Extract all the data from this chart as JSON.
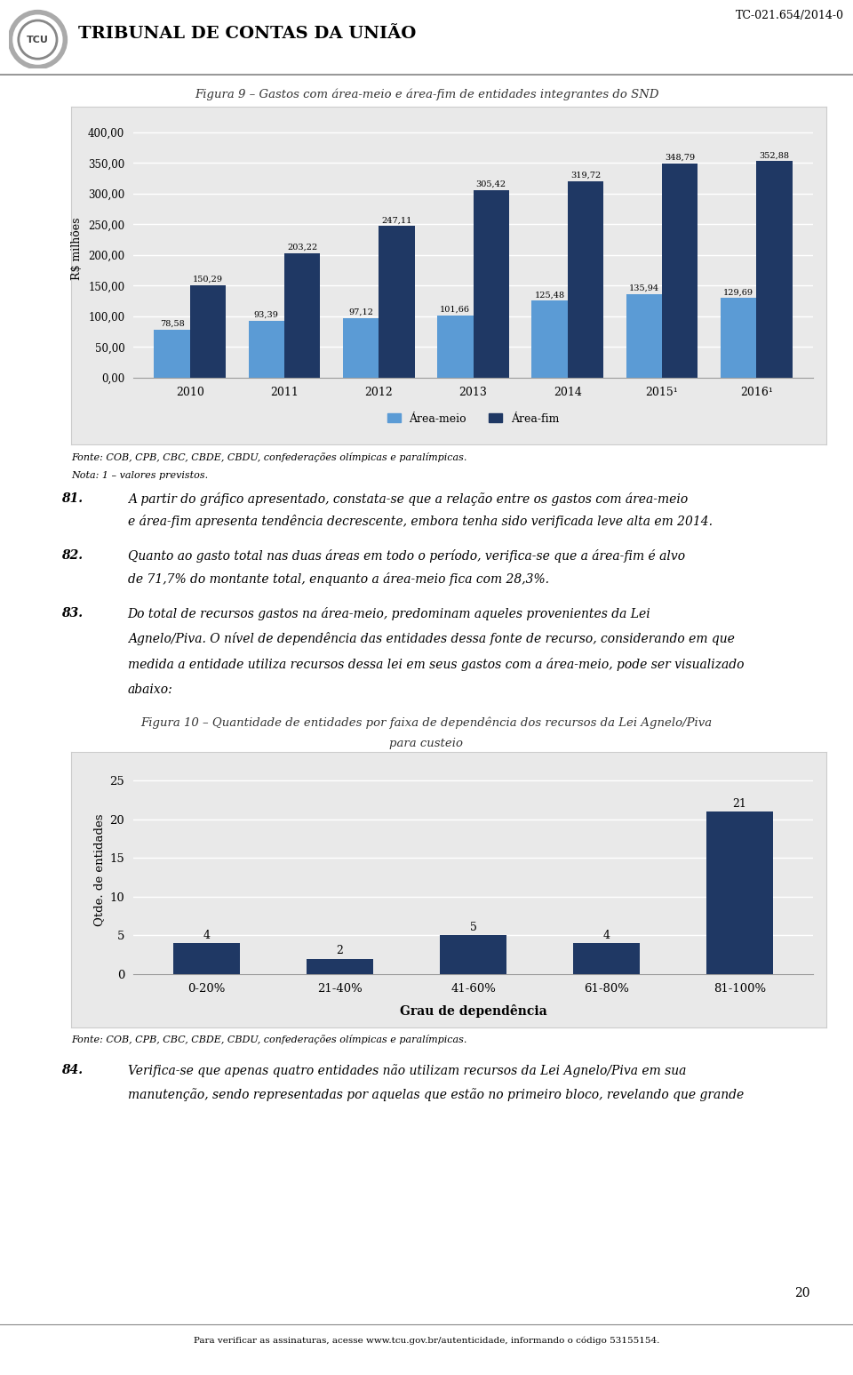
{
  "page_title": "TRIBUNAL DE CONTAS DA UNIÃO",
  "page_code": "TC-021.654/2014-0",
  "page_number": "20",
  "fig9_title": "Figura 9 – Gastos com área-meio e área-fim de entidades integrantes do SND",
  "fig9_years": [
    "2010",
    "2011",
    "2012",
    "2013",
    "2014",
    "2015¹",
    "2016¹"
  ],
  "fig9_area_meio": [
    78.58,
    93.39,
    97.12,
    101.66,
    125.48,
    135.94,
    129.69
  ],
  "fig9_area_fim": [
    150.29,
    203.22,
    247.11,
    305.42,
    319.72,
    348.79,
    352.88
  ],
  "fig9_ylabel": "R$ milhões",
  "fig9_yticks": [
    0,
    50,
    100,
    150,
    200,
    250,
    300,
    350,
    400
  ],
  "fig9_ytick_labels": [
    "0,00",
    "50,00",
    "100,00",
    "150,00",
    "200,00",
    "250,00",
    "300,00",
    "350,00",
    "400,00"
  ],
  "fig9_color_meio": "#5B9BD5",
  "fig9_color_fim": "#1F3864",
  "fig9_legend_meio": "Área-meio",
  "fig9_legend_fim": "Área-fim",
  "fig9_source": "Fonte: COB, CPB, CBC, CBDE, CBDU, confederações olímpicas e paralímpicas.",
  "fig9_nota": "Nota: 1 – valores previstos.",
  "text_81_num": "81.",
  "text_81_line1": "A partir do gráfico apresentado, constata-se que a relação entre os gastos com área-meio",
  "text_81_line2": "e área-fim apresenta tendência decrescente, embora tenha sido verificada leve alta em 2014.",
  "text_82_num": "82.",
  "text_82_line1": "Quanto ao gasto total nas duas áreas em todo o período, verifica-se que a área-fim é alvo",
  "text_82_line2": "de 71,7% do montante total, enquanto a área-meio fica com 28,3%.",
  "text_83_num": "83.",
  "text_83_line1": "Do total de recursos gastos na área-meio, predominam aqueles provenientes da Lei",
  "text_83_line2": "Agnelo/Piva. O nível de dependência das entidades dessa fonte de recurso, considerando em que",
  "text_83_line3": "medida a entidade utiliza recursos dessa lei em seus gastos com a área-meio, pode ser visualizado",
  "text_83_line4": "abaixo:",
  "fig10_title_line1": "Figura 10 – Quantidade de entidades por faixa de dependência dos recursos da Lei Agnelo/Piva",
  "fig10_title_line2": "para custeio",
  "fig10_categories": [
    "0-20%",
    "21-40%",
    "41-60%",
    "61-80%",
    "81-100%"
  ],
  "fig10_values": [
    4,
    2,
    5,
    4,
    21
  ],
  "fig10_color": "#1F3864",
  "fig10_ylabel": "Qtde. de entidades",
  "fig10_xlabel": "Grau de dependência",
  "fig10_yticks": [
    0,
    5,
    10,
    15,
    20,
    25
  ],
  "fig10_source": "Fonte: COB, CPB, CBC, CBDE, CBDU, confederações olímpicas e paralímpicas.",
  "text_84_num": "84.",
  "text_84_line1": "Verifica-se que apenas quatro entidades não utilizam recursos da Lei Agnelo/Piva em sua",
  "text_84_line2": "manutenção, sendo representadas por aquelas que estão no primeiro bloco, revelando que grande",
  "footer": "Para verificar as assinaturas, acesse www.tcu.gov.br/autenticidade, informando o código 53155154.",
  "bg_color": "#FFFFFF",
  "chart_bg": "#E9E9E9",
  "grid_color": "#FFFFFF",
  "text_color": "#000000"
}
